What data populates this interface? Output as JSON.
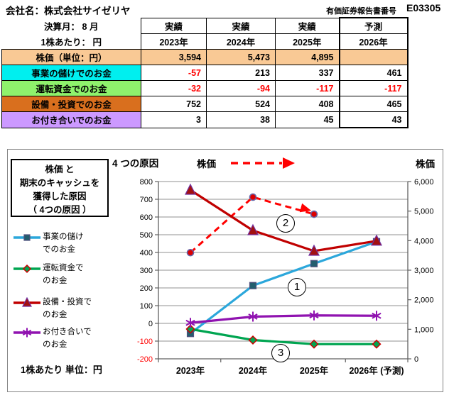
{
  "header": {
    "company": "会社名：株式会社サイゼリヤ",
    "report_label": "有価証券報告書番号",
    "report_number": "E03305"
  },
  "table": {
    "meta_rows": [
      {
        "label": "決算月： 8 月",
        "cells": [
          "実績",
          "実績",
          "実績",
          "予測"
        ]
      },
      {
        "label": "1株あたり： 円",
        "cells": [
          "2023年",
          "2024年",
          "2025年",
          "2026年"
        ]
      }
    ],
    "rows": [
      {
        "label": "株価（単位：円）",
        "bg": "#F9C995",
        "full_row": true,
        "values": [
          "3,594",
          "5,473",
          "4,895",
          ""
        ]
      },
      {
        "label": "事業の儲けでのお金",
        "bg": "#00EFEF",
        "full_row": false,
        "values": [
          "-57",
          "213",
          "337",
          "461"
        ]
      },
      {
        "label": "運転資金でのお金",
        "bg": "#8FF26C",
        "full_row": false,
        "values": [
          "-32",
          "-94",
          "-117",
          "-117"
        ]
      },
      {
        "label": "設備・投資でのお金",
        "bg": "#D96F1E",
        "full_row": false,
        "values": [
          "752",
          "524",
          "408",
          "465"
        ]
      },
      {
        "label": "お付き合いでのお金",
        "bg": "#CC99FF",
        "full_row": false,
        "values": [
          "3",
          "38",
          "45",
          "43"
        ]
      }
    ]
  },
  "panel": {
    "title_box_lines": [
      "株価 と",
      "期末のキャッシュを",
      "獲得した原因",
      "（ 4つの原因 ）"
    ],
    "footer_note": "1株あたり 単位：円"
  },
  "chart_data": {
    "type": "line",
    "title": "4 つの原因",
    "stock_legend_label": "株価",
    "x_categories": [
      "2023年",
      "2024年",
      "2025年",
      "2026年 (予測)"
    ],
    "y_left": {
      "min": -200,
      "max": 800,
      "step": 100,
      "ticks": [
        "800",
        "700",
        "600",
        "500",
        "400",
        "300",
        "200",
        "100",
        "0",
        "-100",
        "-200"
      ],
      "negative_color": "#FF0000"
    },
    "y_right": {
      "min": 0,
      "max": 6000,
      "step": 1000,
      "label": "株価",
      "ticks": [
        "6,000",
        "5,000",
        "4,000",
        "3,000",
        "2,000",
        "1,000",
        "0"
      ]
    },
    "series": [
      {
        "name": "事業の儲けでのお金",
        "legend_lines": [
          "事業の儲け",
          "でのお金"
        ],
        "axis": "left",
        "color": "#2BA7DB",
        "marker": "square",
        "marker_fill": "#235E6E",
        "marker_stroke": "#52527E",
        "values": [
          -57,
          213,
          337,
          461
        ]
      },
      {
        "name": "運転資金でのお金",
        "legend_lines": [
          "運転資金で",
          "のお金"
        ],
        "axis": "left",
        "color": "#00A551",
        "marker": "diamond",
        "marker_fill": "#00A551",
        "marker_stroke": "#CC0000",
        "values": [
          -32,
          -94,
          -117,
          -117
        ]
      },
      {
        "name": "設備・投資でのお金",
        "legend_lines": [
          "設備・投資で",
          "のお金"
        ],
        "axis": "left",
        "color": "#C00000",
        "marker": "triangle",
        "marker_fill": "#A31111",
        "marker_stroke": "#7030A0",
        "values": [
          752,
          524,
          408,
          465
        ]
      },
      {
        "name": "お付き合いでのお金",
        "legend_lines": [
          "お付き合いで",
          "のお金"
        ],
        "axis": "left",
        "color": "#9013B0",
        "marker": "asterisk",
        "marker_fill": "#9013B0",
        "marker_stroke": "#9013B0",
        "values": [
          3,
          38,
          45,
          43
        ]
      },
      {
        "name": "株価",
        "axis": "right",
        "dash": true,
        "color": "#FF0000",
        "marker": "circle",
        "marker_fill": "#DD0000",
        "marker_stroke": "#6666AA",
        "values": [
          3594,
          5473,
          4895,
          null
        ]
      }
    ],
    "annotations": [
      "1",
      "2",
      "3"
    ],
    "grid": true,
    "grid_color": "#909090",
    "axis_color": "#606060"
  }
}
